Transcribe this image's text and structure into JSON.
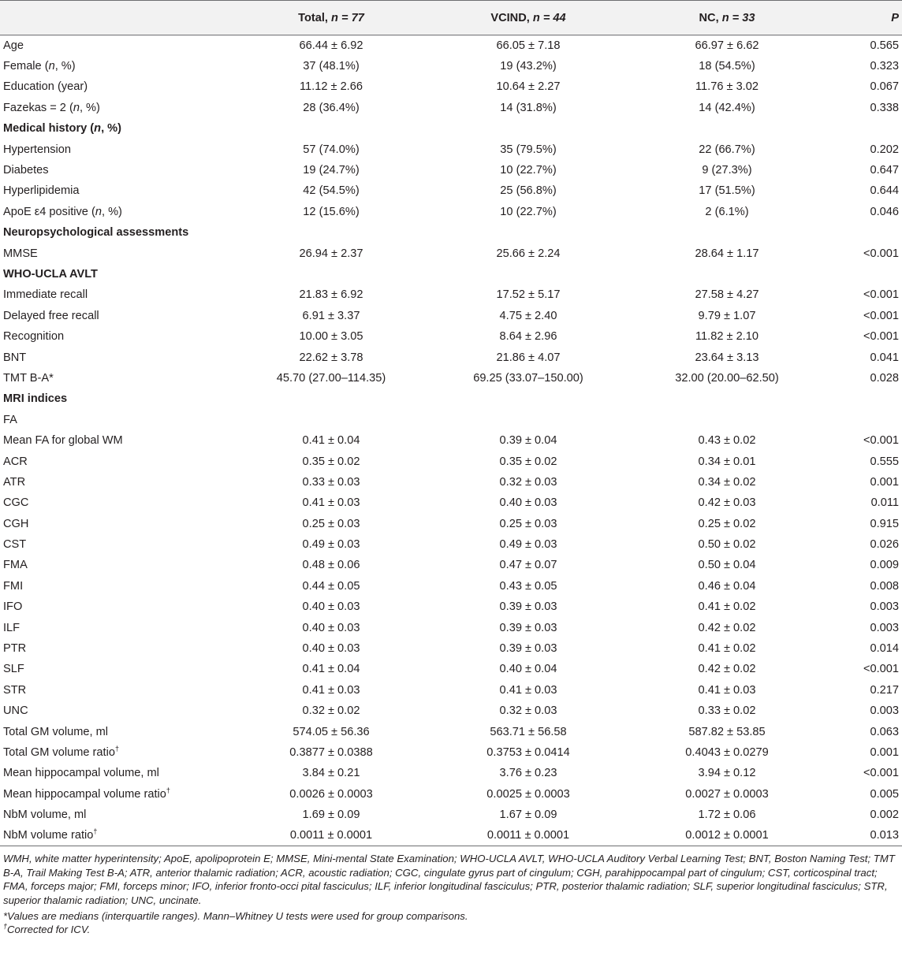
{
  "table": {
    "headers": [
      {
        "label": "",
        "n": ""
      },
      {
        "label": "Total, ",
        "n": "n = 77"
      },
      {
        "label": "VCIND, ",
        "n": "n = 44"
      },
      {
        "label": "NC, ",
        "n": "n = 33"
      },
      {
        "label": "P",
        "n": ""
      }
    ],
    "rows": [
      {
        "label": "Age",
        "total": "66.44 ± 6.92",
        "vcind": "66.05 ± 7.18",
        "nc": "66.97 ± 6.62",
        "p": "0.565"
      },
      {
        "label": "Female (",
        "label_i": "n",
        "label_tail": ", %)",
        "total": "37 (48.1%)",
        "vcind": "19 (43.2%)",
        "nc": "18 (54.5%)",
        "p": "0.323"
      },
      {
        "label": "Education (year)",
        "total": "11.12 ± 2.66",
        "vcind": "10.64 ± 2.27",
        "nc": "11.76 ± 3.02",
        "p": "0.067"
      },
      {
        "label": "Fazekas = 2 (",
        "label_i": "n",
        "label_tail": ", %)",
        "total": "28 (36.4%)",
        "vcind": "14 (31.8%)",
        "nc": "14 (42.4%)",
        "p": "0.338"
      },
      {
        "label": "Medical history (",
        "label_i": "n",
        "label_tail": ", %)",
        "section": true,
        "total": "",
        "vcind": "",
        "nc": "",
        "p": ""
      },
      {
        "label": "Hypertension",
        "total": "57 (74.0%)",
        "vcind": "35 (79.5%)",
        "nc": "22 (66.7%)",
        "p": "0.202"
      },
      {
        "label": "Diabetes",
        "total": "19 (24.7%)",
        "vcind": "10 (22.7%)",
        "nc": "9 (27.3%)",
        "p": "0.647"
      },
      {
        "label": "Hyperlipidemia",
        "total": "42 (54.5%)",
        "vcind": "25 (56.8%)",
        "nc": "17 (51.5%)",
        "p": "0.644"
      },
      {
        "label": "ApoE ε4 positive (",
        "label_i": "n",
        "label_tail": ", %)",
        "total": "12 (15.6%)",
        "vcind": "10 (22.7%)",
        "nc": "2 (6.1%)",
        "p": "0.046"
      },
      {
        "label": "Neuropsychological assessments",
        "section": true,
        "total": "",
        "vcind": "",
        "nc": "",
        "p": ""
      },
      {
        "label": "MMSE",
        "total": "26.94 ± 2.37",
        "vcind": "25.66 ± 2.24",
        "nc": "28.64 ± 1.17",
        "p": "<0.001"
      },
      {
        "label": "WHO-UCLA AVLT",
        "section": true,
        "total": "",
        "vcind": "",
        "nc": "",
        "p": ""
      },
      {
        "label": "Immediate recall",
        "total": "21.83 ± 6.92",
        "vcind": "17.52 ± 5.17",
        "nc": "27.58 ± 4.27",
        "p": "<0.001"
      },
      {
        "label": "Delayed free recall",
        "total": "6.91 ± 3.37",
        "vcind": "4.75 ± 2.40",
        "nc": "9.79 ± 1.07",
        "p": "<0.001"
      },
      {
        "label": "Recognition",
        "total": "10.00 ± 3.05",
        "vcind": "8.64 ± 2.96",
        "nc": "11.82 ± 2.10",
        "p": "<0.001"
      },
      {
        "label": "BNT",
        "total": "22.62 ± 3.78",
        "vcind": "21.86 ± 4.07",
        "nc": "23.64 ± 3.13",
        "p": "0.041"
      },
      {
        "label": "TMT B-A*",
        "total": "45.70 (27.00–114.35)",
        "vcind": "69.25 (33.07–150.00)",
        "nc": "32.00 (20.00–62.50)",
        "p": "0.028"
      },
      {
        "label": "MRI indices",
        "section": true,
        "total": "",
        "vcind": "",
        "nc": "",
        "p": ""
      },
      {
        "label": "FA",
        "total": "",
        "vcind": "",
        "nc": "",
        "p": ""
      },
      {
        "label": "Mean FA for global WM",
        "total": "0.41 ± 0.04",
        "vcind": "0.39 ± 0.04",
        "nc": "0.43 ± 0.02",
        "p": "<0.001"
      },
      {
        "label": "ACR",
        "total": "0.35 ± 0.02",
        "vcind": "0.35 ± 0.02",
        "nc": "0.34 ± 0.01",
        "p": "0.555"
      },
      {
        "label": "ATR",
        "total": "0.33 ± 0.03",
        "vcind": "0.32 ± 0.03",
        "nc": "0.34 ± 0.02",
        "p": "0.001"
      },
      {
        "label": "CGC",
        "total": "0.41 ± 0.03",
        "vcind": "0.40 ± 0.03",
        "nc": "0.42 ± 0.03",
        "p": "0.011"
      },
      {
        "label": "CGH",
        "total": "0.25 ± 0.03",
        "vcind": "0.25 ± 0.03",
        "nc": "0.25 ± 0.02",
        "p": "0.915"
      },
      {
        "label": "CST",
        "total": "0.49 ± 0.03",
        "vcind": "0.49 ± 0.03",
        "nc": "0.50 ± 0.02",
        "p": "0.026"
      },
      {
        "label": "FMA",
        "total": "0.48 ± 0.06",
        "vcind": "0.47 ± 0.07",
        "nc": "0.50 ± 0.04",
        "p": "0.009"
      },
      {
        "label": "FMI",
        "total": "0.44 ± 0.05",
        "vcind": "0.43 ± 0.05",
        "nc": "0.46 ± 0.04",
        "p": "0.008"
      },
      {
        "label": "IFO",
        "total": "0.40 ± 0.03",
        "vcind": "0.39 ± 0.03",
        "nc": "0.41 ± 0.02",
        "p": "0.003"
      },
      {
        "label": "ILF",
        "total": "0.40 ± 0.03",
        "vcind": "0.39 ± 0.03",
        "nc": "0.42 ± 0.02",
        "p": "0.003"
      },
      {
        "label": "PTR",
        "total": "0.40 ± 0.03",
        "vcind": "0.39 ± 0.03",
        "nc": "0.41 ± 0.02",
        "p": "0.014"
      },
      {
        "label": "SLF",
        "total": "0.41 ± 0.04",
        "vcind": "0.40 ± 0.04",
        "nc": "0.42 ± 0.02",
        "p": "<0.001"
      },
      {
        "label": "STR",
        "total": "0.41 ± 0.03",
        "vcind": "0.41 ± 0.03",
        "nc": "0.41 ± 0.03",
        "p": "0.217"
      },
      {
        "label": "UNC",
        "total": "0.32 ± 0.02",
        "vcind": "0.32 ± 0.03",
        "nc": "0.33 ± 0.02",
        "p": "0.003"
      },
      {
        "label": "Total GM volume, ml",
        "total": "574.05 ± 56.36",
        "vcind": "563.71 ± 56.58",
        "nc": "587.82 ± 53.85",
        "p": "0.063"
      },
      {
        "label": "Total GM volume ratio",
        "sup": "†",
        "total": "0.3877 ± 0.0388",
        "vcind": "0.3753 ± 0.0414",
        "nc": "0.4043 ± 0.0279",
        "p": "0.001"
      },
      {
        "label": "Mean hippocampal volume, ml",
        "total": "3.84 ± 0.21",
        "vcind": "3.76 ± 0.23",
        "nc": "3.94 ± 0.12",
        "p": "<0.001"
      },
      {
        "label": "Mean hippocampal volume ratio",
        "sup": "†",
        "total": "0.0026 ± 0.0003",
        "vcind": "0.0025 ± 0.0003",
        "nc": "0.0027 ± 0.0003",
        "p": "0.005"
      },
      {
        "label": "NbM volume, ml",
        "total": "1.69 ± 0.09",
        "vcind": "1.67 ± 0.09",
        "nc": "1.72 ± 0.06",
        "p": "0.002"
      },
      {
        "label": "NbM volume ratio",
        "sup": "†",
        "total": "0.0011 ± 0.0001",
        "vcind": "0.0011 ± 0.0001",
        "nc": "0.0012 ± 0.0001",
        "p": "0.013"
      }
    ]
  },
  "footnotes": {
    "abbreviations": "WMH, white matter hyperintensity; ApoE, apolipoprotein E; MMSE, Mini-mental State Examination; WHO-UCLA AVLT, WHO-UCLA Auditory Verbal Learning Test; BNT, Boston Naming Test; TMT B-A, Trail Making Test B-A; ATR, anterior thalamic radiation; ACR, acoustic radiation; CGC, cingulate gyrus part of cingulum; CGH, parahippocampal part of cingulum; CST, corticospinal tract; FMA, forceps major; FMI, forceps minor; IFO, inferior fronto-occi pital fasciculus; ILF, inferior longitudinal fasciculus; PTR, posterior thalamic radiation; SLF, superior longitudinal fasciculus; STR, superior thalamic radiation; UNC, uncinate.",
    "star": "*Values are medians (interquartile ranges). Mann–Whitney U tests were used for group comparisons.",
    "dagger_mark": "†",
    "dagger": "Corrected for ICV."
  }
}
